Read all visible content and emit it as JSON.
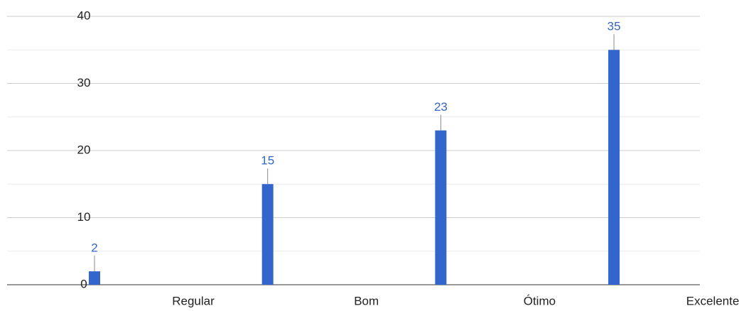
{
  "chart_data": {
    "type": "bar",
    "categories": [
      "Regular",
      "Bom",
      "Ótimo",
      "Excelente"
    ],
    "values": [
      2,
      15,
      23,
      35
    ],
    "color": "#3366cc",
    "ylim": [
      0,
      40
    ],
    "yticks": [
      0,
      10,
      20,
      30,
      40
    ],
    "minor_yticks": [
      5,
      15,
      25,
      35
    ],
    "grid": true
  }
}
